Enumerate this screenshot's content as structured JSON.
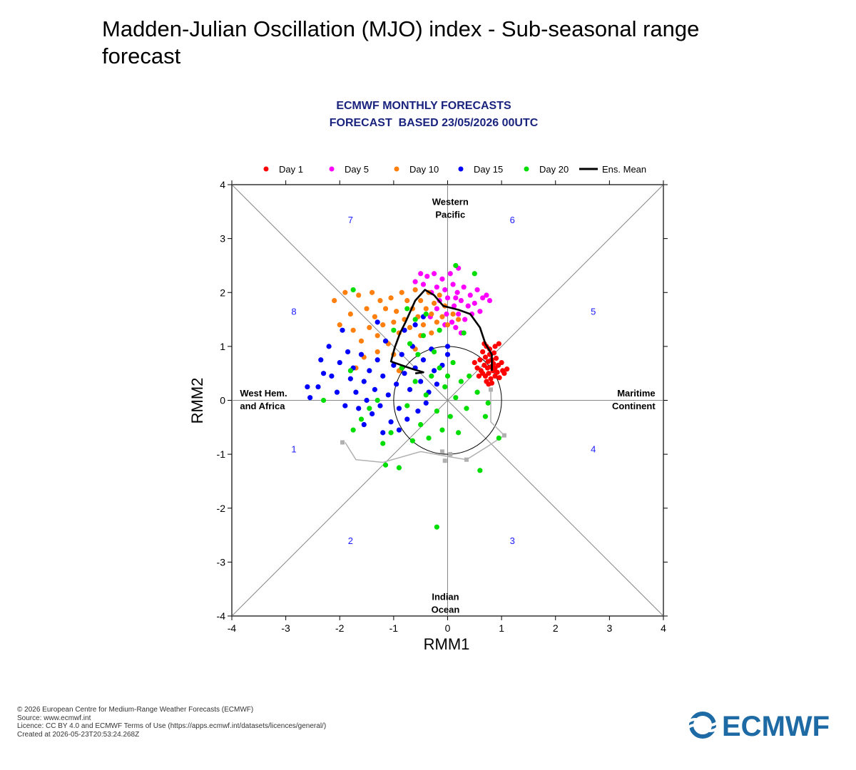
{
  "page": {
    "title": "Madden-Julian Oscillation (MJO) index - Sub-seasonal range forecast"
  },
  "footer": {
    "lines": [
      "© 2026 European Centre for Medium-Range Weather Forecasts (ECMWF)",
      "Source: www.ecmwf.int",
      "Licence: CC BY 4.0 and ECMWF Terms of Use (https://apps.ecmwf.int/datasets/licences/general/)",
      "Created at 2026-05-23T20:53:24.268Z"
    ],
    "logo_text": "ECMWF",
    "logo_color": "#1d6aa5"
  },
  "chart_data": {
    "type": "scatter",
    "title": "ECMWF MONTHLY FORECASTS",
    "subtitle": "FORECAST  BASED 23/05/2026 00UTC",
    "title_color": "#1a237e",
    "xlabel": "RMM1",
    "ylabel": "RMM2",
    "xlim": [
      -4,
      4
    ],
    "ylim": [
      -4,
      4
    ],
    "xticks": [
      -4,
      -3,
      -2,
      -1,
      0,
      1,
      2,
      3,
      4
    ],
    "yticks": [
      -4,
      -3,
      -2,
      -1,
      0,
      1,
      2,
      3,
      4
    ],
    "legend_position": "top",
    "legend": [
      {
        "label": "Day 1",
        "color": "#ff0000",
        "kind": "dot"
      },
      {
        "label": "Day 5",
        "color": "#ff00ff",
        "kind": "dot"
      },
      {
        "label": "Day 10",
        "color": "#ff7f0e",
        "kind": "dot"
      },
      {
        "label": "Day 15",
        "color": "#0000ff",
        "kind": "dot"
      },
      {
        "label": "Day 20",
        "color": "#00dd00",
        "kind": "dot"
      },
      {
        "label": "Ens. Mean",
        "color": "#000000",
        "kind": "line"
      }
    ],
    "region_labels": [
      {
        "text": [
          "Western",
          "Pacific"
        ],
        "x": 0.05,
        "y": 3.62
      },
      {
        "text": [
          "Indian",
          "Ocean"
        ],
        "x": -0.04,
        "y": -3.7
      },
      {
        "text": [
          "West Hem.",
          "and Africa"
        ],
        "x": -3.85,
        "y": 0.07
      },
      {
        "text": [
          "Maritime",
          "Continent"
        ],
        "x": 3.85,
        "y": 0.07
      }
    ],
    "phase_labels": [
      {
        "text": "1",
        "x": -2.85,
        "y": -0.9
      },
      {
        "text": "2",
        "x": -1.8,
        "y": -2.6
      },
      {
        "text": "3",
        "x": 1.2,
        "y": -2.6
      },
      {
        "text": "4",
        "x": 2.7,
        "y": -0.9
      },
      {
        "text": "5",
        "x": 2.7,
        "y": 1.65
      },
      {
        "text": "6",
        "x": 1.2,
        "y": 3.35
      },
      {
        "text": "7",
        "x": -1.8,
        "y": 3.35
      },
      {
        "text": "8",
        "x": -2.85,
        "y": 1.65
      }
    ],
    "unit_circle_radius": 1,
    "observed_analysis": {
      "color": "#b0b0b0",
      "points": [
        [
          -1.9,
          -0.78
        ],
        [
          -1.7,
          -1.1
        ],
        [
          -1.2,
          -1.15
        ],
        [
          -0.5,
          -0.95
        ],
        [
          0.05,
          -1.05
        ],
        [
          0.35,
          -1.1
        ],
        [
          0.75,
          -0.85
        ],
        [
          1.05,
          -0.65
        ],
        [
          0.8,
          -0.4
        ],
        [
          0.8,
          0.2
        ]
      ],
      "markers": [
        [
          -1.95,
          -0.78
        ],
        [
          -0.1,
          -0.95
        ],
        [
          -0.05,
          -1.12
        ],
        [
          0.05,
          -1.0
        ],
        [
          0.35,
          -1.1
        ],
        [
          1.05,
          -0.65
        ],
        [
          0.8,
          0.2
        ]
      ]
    },
    "ensemble_mean": [
      [
        0.82,
        0.55
      ],
      [
        0.82,
        0.85
      ],
      [
        0.7,
        1.05
      ],
      [
        0.6,
        1.35
      ],
      [
        0.42,
        1.6
      ],
      [
        0.2,
        1.68
      ],
      [
        -0.08,
        1.75
      ],
      [
        -0.25,
        1.95
      ],
      [
        -0.42,
        2.05
      ],
      [
        -0.6,
        1.85
      ],
      [
        -0.78,
        1.45
      ],
      [
        -0.88,
        1.25
      ],
      [
        -0.98,
        0.98
      ],
      [
        -1.05,
        0.72
      ],
      [
        -0.85,
        0.65
      ],
      [
        -0.65,
        0.58
      ],
      [
        -0.45,
        0.52
      ],
      [
        -0.6,
        0.5
      ]
    ],
    "series": [
      {
        "name": "Day 1",
        "color": "#ff0000",
        "points": [
          [
            0.55,
            0.6
          ],
          [
            0.6,
            0.75
          ],
          [
            0.62,
            0.55
          ],
          [
            0.65,
            0.9
          ],
          [
            0.68,
            0.65
          ],
          [
            0.7,
            0.45
          ],
          [
            0.7,
            0.8
          ],
          [
            0.72,
            1.0
          ],
          [
            0.74,
            0.6
          ],
          [
            0.75,
            0.72
          ],
          [
            0.76,
            0.5
          ],
          [
            0.78,
            0.85
          ],
          [
            0.78,
            0.95
          ],
          [
            0.8,
            0.62
          ],
          [
            0.8,
            0.4
          ],
          [
            0.82,
            0.75
          ],
          [
            0.84,
            0.55
          ],
          [
            0.85,
            0.68
          ],
          [
            0.86,
            0.88
          ],
          [
            0.88,
            0.45
          ],
          [
            0.88,
            0.6
          ],
          [
            0.9,
            0.78
          ],
          [
            0.92,
            0.52
          ],
          [
            0.94,
            0.65
          ],
          [
            0.96,
            0.42
          ],
          [
            1.0,
            0.7
          ],
          [
            1.02,
            0.55
          ],
          [
            1.05,
            0.5
          ],
          [
            1.1,
            0.58
          ],
          [
            0.65,
            0.5
          ],
          [
            0.58,
            0.45
          ],
          [
            0.72,
            0.35
          ],
          [
            0.82,
            0.32
          ],
          [
            0.95,
            1.05
          ],
          [
            0.5,
            0.7
          ],
          [
            0.68,
            1.05
          ],
          [
            0.88,
            1.0
          ],
          [
            0.76,
            0.3
          ]
        ]
      },
      {
        "name": "Day 5",
        "color": "#ff00ff",
        "points": [
          [
            -0.5,
            2.35
          ],
          [
            -0.45,
            2.15
          ],
          [
            -0.38,
            2.3
          ],
          [
            -0.3,
            2.0
          ],
          [
            -0.25,
            2.35
          ],
          [
            -0.2,
            2.1
          ],
          [
            -0.15,
            1.85
          ],
          [
            -0.1,
            2.25
          ],
          [
            -0.05,
            2.05
          ],
          [
            0.0,
            1.9
          ],
          [
            0.05,
            2.35
          ],
          [
            0.1,
            2.15
          ],
          [
            0.12,
            1.75
          ],
          [
            0.18,
            2.0
          ],
          [
            0.2,
            1.6
          ],
          [
            0.25,
            1.85
          ],
          [
            0.3,
            2.1
          ],
          [
            0.32,
            1.5
          ],
          [
            0.38,
            1.75
          ],
          [
            0.42,
            1.95
          ],
          [
            0.45,
            1.6
          ],
          [
            0.5,
            1.8
          ],
          [
            0.55,
            2.05
          ],
          [
            0.6,
            1.65
          ],
          [
            0.65,
            1.9
          ],
          [
            0.72,
            1.95
          ],
          [
            0.78,
            1.85
          ],
          [
            -0.02,
            1.6
          ],
          [
            0.08,
            1.45
          ],
          [
            0.15,
            1.35
          ],
          [
            -0.2,
            1.7
          ],
          [
            -0.32,
            1.55
          ],
          [
            -0.05,
            1.4
          ],
          [
            0.25,
            1.25
          ],
          [
            -0.6,
            2.2
          ],
          [
            0.2,
            2.45
          ],
          [
            0.15,
            1.9
          ]
        ]
      },
      {
        "name": "Day 10",
        "color": "#ff7f0e",
        "points": [
          [
            -2.1,
            1.85
          ],
          [
            -1.9,
            2.0
          ],
          [
            -1.8,
            1.6
          ],
          [
            -1.75,
            1.3
          ],
          [
            -1.65,
            1.95
          ],
          [
            -1.6,
            1.1
          ],
          [
            -1.5,
            1.7
          ],
          [
            -1.45,
            1.35
          ],
          [
            -1.4,
            2.0
          ],
          [
            -1.35,
            1.55
          ],
          [
            -1.3,
            1.2
          ],
          [
            -1.25,
            1.85
          ],
          [
            -1.2,
            1.4
          ],
          [
            -1.15,
            1.7
          ],
          [
            -1.1,
            1.05
          ],
          [
            -1.05,
            1.9
          ],
          [
            -1.0,
            1.45
          ],
          [
            -0.95,
            1.65
          ],
          [
            -0.9,
            1.25
          ],
          [
            -0.85,
            2.0
          ],
          [
            -0.8,
            1.5
          ],
          [
            -0.75,
            1.85
          ],
          [
            -0.7,
            1.35
          ],
          [
            -0.65,
            1.7
          ],
          [
            -0.6,
            2.05
          ],
          [
            -0.55,
            1.55
          ],
          [
            -0.5,
            1.85
          ],
          [
            -0.45,
            1.4
          ],
          [
            -0.4,
            1.7
          ],
          [
            -0.35,
            2.0
          ],
          [
            -0.3,
            1.6
          ],
          [
            -0.25,
            1.8
          ],
          [
            -0.2,
            1.45
          ],
          [
            -0.15,
            1.95
          ],
          [
            -0.1,
            1.55
          ],
          [
            -0.05,
            1.75
          ],
          [
            0.0,
            1.4
          ],
          [
            0.1,
            1.6
          ],
          [
            0.2,
            1.5
          ],
          [
            -1.55,
            0.8
          ],
          [
            -1.3,
            0.9
          ],
          [
            -1.0,
            0.85
          ],
          [
            -0.9,
            0.55
          ],
          [
            -0.6,
            0.95
          ],
          [
            -2.0,
            1.4
          ],
          [
            -1.7,
            0.6
          ],
          [
            -0.3,
            1.25
          ],
          [
            -0.5,
            1.2
          ]
        ]
      },
      {
        "name": "Day 15",
        "color": "#0000ff",
        "points": [
          [
            -2.55,
            0.05
          ],
          [
            -2.4,
            0.25
          ],
          [
            -2.35,
            0.75
          ],
          [
            -2.3,
            0.5
          ],
          [
            -2.2,
            1.0
          ],
          [
            -2.15,
            0.45
          ],
          [
            -2.05,
            0.15
          ],
          [
            -2.0,
            0.7
          ],
          [
            -1.95,
            1.3
          ],
          [
            -1.9,
            -0.1
          ],
          [
            -1.85,
            0.9
          ],
          [
            -1.8,
            0.4
          ],
          [
            -1.75,
            0.6
          ],
          [
            -1.7,
            0.15
          ],
          [
            -1.65,
            -0.15
          ],
          [
            -1.6,
            0.85
          ],
          [
            -1.55,
            0.35
          ],
          [
            -1.5,
            0.0
          ],
          [
            -1.45,
            0.55
          ],
          [
            -1.4,
            -0.25
          ],
          [
            -1.35,
            0.2
          ],
          [
            -1.3,
            0.75
          ],
          [
            -1.25,
            -0.1
          ],
          [
            -1.2,
            0.45
          ],
          [
            -1.15,
            1.1
          ],
          [
            -1.1,
            0.1
          ],
          [
            -1.05,
            -0.4
          ],
          [
            -1.0,
            0.65
          ],
          [
            -0.95,
            0.3
          ],
          [
            -0.9,
            -0.15
          ],
          [
            -0.85,
            0.85
          ],
          [
            -0.8,
            0.5
          ],
          [
            -0.75,
            -0.35
          ],
          [
            -0.7,
            0.2
          ],
          [
            -0.65,
            1.0
          ],
          [
            -0.6,
            0.6
          ],
          [
            -0.55,
            -0.2
          ],
          [
            -0.5,
            0.35
          ],
          [
            -0.45,
            0.75
          ],
          [
            -0.4,
            -0.05
          ],
          [
            -0.35,
            0.15
          ],
          [
            -0.3,
            0.95
          ],
          [
            -0.25,
            0.55
          ],
          [
            -0.2,
            0.3
          ],
          [
            -1.2,
            -0.6
          ],
          [
            -0.9,
            -0.55
          ],
          [
            -1.55,
            -0.45
          ],
          [
            -0.6,
            1.4
          ],
          [
            -0.8,
            1.3
          ],
          [
            -0.45,
            1.55
          ],
          [
            -2.6,
            0.25
          ],
          [
            -1.3,
            1.45
          ],
          [
            0.0,
            0.85
          ],
          [
            -0.1,
            0.65
          ],
          [
            0.0,
            1.0
          ]
        ]
      },
      {
        "name": "Day 20",
        "color": "#00dd00",
        "points": [
          [
            -1.75,
            2.05
          ],
          [
            -1.8,
            0.55
          ],
          [
            -1.75,
            -0.55
          ],
          [
            -1.6,
            -0.35
          ],
          [
            -1.45,
            -0.15
          ],
          [
            -1.3,
            0.0
          ],
          [
            -1.2,
            -0.8
          ],
          [
            -1.15,
            -1.2
          ],
          [
            -1.05,
            -0.6
          ],
          [
            -0.9,
            -1.25
          ],
          [
            -0.85,
            0.6
          ],
          [
            -0.75,
            -0.1
          ],
          [
            -0.7,
            1.05
          ],
          [
            -0.65,
            -0.75
          ],
          [
            -0.6,
            0.35
          ],
          [
            -0.55,
            0.85
          ],
          [
            -0.5,
            -0.45
          ],
          [
            -0.45,
            1.2
          ],
          [
            -0.4,
            0.1
          ],
          [
            -0.35,
            -0.7
          ],
          [
            -0.3,
            0.45
          ],
          [
            -0.25,
            0.9
          ],
          [
            -0.2,
            -0.2
          ],
          [
            -0.15,
            0.6
          ],
          [
            -0.1,
            -0.55
          ],
          [
            -0.05,
            0.25
          ],
          [
            0.0,
            0.45
          ],
          [
            0.05,
            -0.3
          ],
          [
            0.1,
            0.7
          ],
          [
            0.15,
            0.05
          ],
          [
            0.2,
            -0.6
          ],
          [
            0.25,
            0.35
          ],
          [
            0.3,
            1.25
          ],
          [
            0.35,
            -0.15
          ],
          [
            0.4,
            0.45
          ],
          [
            0.5,
            2.35
          ],
          [
            0.55,
            0.15
          ],
          [
            0.6,
            -1.3
          ],
          [
            0.7,
            -0.3
          ],
          [
            0.75,
            -0.05
          ],
          [
            0.95,
            -0.7
          ],
          [
            -0.2,
            -2.35
          ],
          [
            -0.6,
            1.5
          ],
          [
            -0.4,
            1.6
          ],
          [
            0.15,
            2.5
          ],
          [
            -0.15,
            1.3
          ],
          [
            -0.75,
            1.7
          ],
          [
            -2.3,
            0.0
          ],
          [
            -1.0,
            1.3
          ]
        ]
      }
    ]
  }
}
